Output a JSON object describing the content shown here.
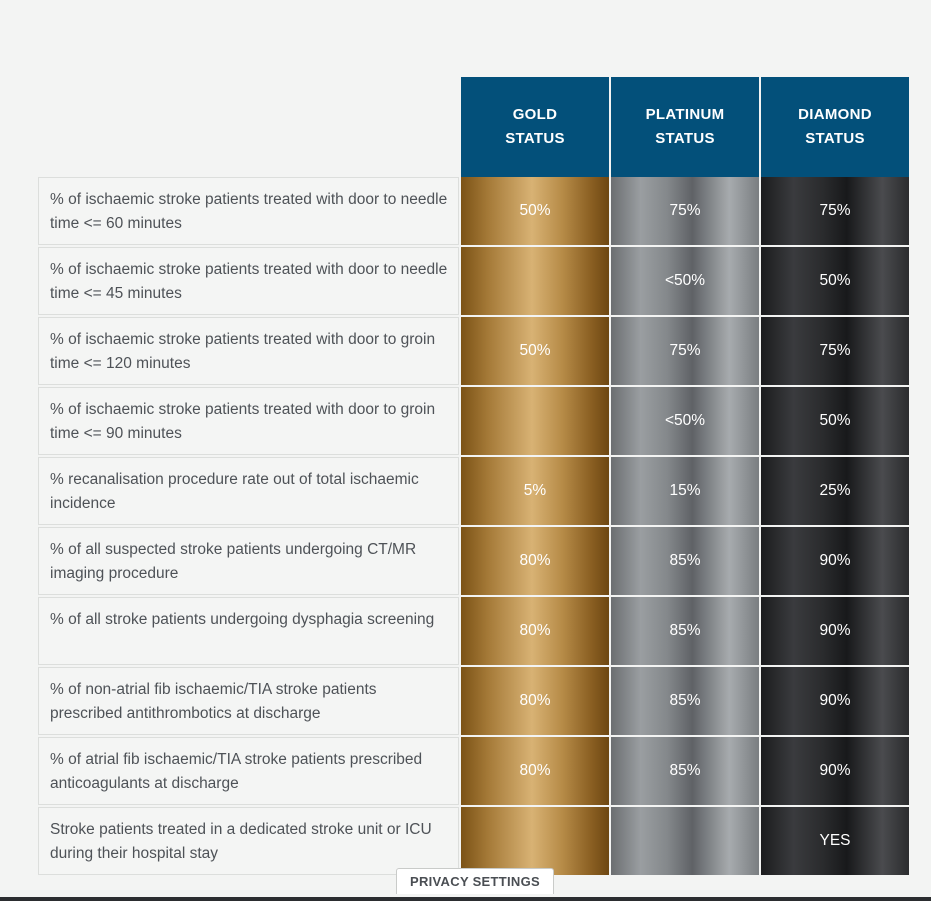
{
  "columns": {
    "gold": "GOLD\nSTATUS",
    "platinum": "PLATINUM\nSTATUS",
    "diamond": "DIAMOND\nSTATUS"
  },
  "rows": [
    {
      "label": "% of ischaemic stroke patients treated with door to needle time <= 60 minutes",
      "gold": "50%",
      "platinum": "75%",
      "diamond": "75%"
    },
    {
      "label": "% of ischaemic stroke patients treated with door to needle time <= 45 minutes",
      "gold": "",
      "platinum": "<50%",
      "diamond": "50%"
    },
    {
      "label": "% of ischaemic stroke patients treated with door to groin time <= 120 minutes",
      "gold": "50%",
      "platinum": "75%",
      "diamond": "75%"
    },
    {
      "label": "% of ischaemic stroke patients treated with door to groin time <= 90 minutes",
      "gold": "",
      "platinum": "<50%",
      "diamond": "50%"
    },
    {
      "label": "% recanalisation procedure rate out of total ischaemic incidence",
      "gold": "5%",
      "platinum": "15%",
      "diamond": "25%"
    },
    {
      "label": "% of all suspected stroke patients undergoing CT/MR imaging procedure",
      "gold": "80%",
      "platinum": "85%",
      "diamond": "90%"
    },
    {
      "label": "% of all stroke patients undergoing dysphagia screening",
      "gold": "80%",
      "platinum": "85%",
      "diamond": "90%"
    },
    {
      "label": "% of non-atrial fib ischaemic/TIA stroke patients prescribed antithrombotics at discharge",
      "gold": "80%",
      "platinum": "85%",
      "diamond": "90%"
    },
    {
      "label": "% of atrial fib ischaemic/TIA stroke patients prescribed anticoagulants at discharge",
      "gold": "80%",
      "platinum": "85%",
      "diamond": "90%"
    },
    {
      "label": "Stroke patients treated in a dedicated stroke unit or ICU during their hospital stay",
      "gold": "",
      "platinum": "",
      "diamond": "YES"
    }
  ],
  "privacy_button": "PRIVACY SETTINGS"
}
